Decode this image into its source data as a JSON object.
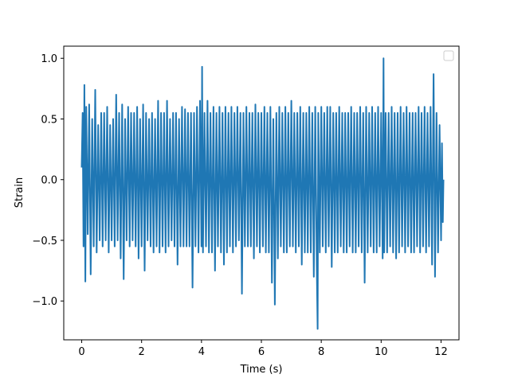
{
  "chart_data": {
    "type": "line",
    "title": "",
    "xlabel": "Time (s)",
    "ylabel": "Strain",
    "xlim": [
      -0.6,
      12.6
    ],
    "ylim": [
      -1.32,
      1.1
    ],
    "xticks": [
      0,
      2,
      4,
      6,
      8,
      10,
      12
    ],
    "yticks": [
      -1.0,
      -0.5,
      0.0,
      0.5,
      1.0
    ],
    "xtick_labels": [
      "0",
      "2",
      "4",
      "6",
      "8",
      "10",
      "12"
    ],
    "ytick_labels": [
      "−1.0",
      "−0.5",
      "0.0",
      "0.5",
      "1.0"
    ],
    "grid": false,
    "legend": {
      "location": "upper right",
      "entries": []
    },
    "series": [
      {
        "color": "#1f77b4",
        "points": [
          [
            0.0,
            0.1
          ],
          [
            0.03,
            0.55
          ],
          [
            0.06,
            -0.55
          ],
          [
            0.09,
            0.78
          ],
          [
            0.12,
            -0.84
          ],
          [
            0.15,
            0.6
          ],
          [
            0.2,
            -0.45
          ],
          [
            0.25,
            0.62
          ],
          [
            0.3,
            -0.78
          ],
          [
            0.35,
            0.5
          ],
          [
            0.4,
            -0.55
          ],
          [
            0.45,
            0.74
          ],
          [
            0.5,
            -0.6
          ],
          [
            0.55,
            0.45
          ],
          [
            0.6,
            -0.5
          ],
          [
            0.65,
            0.55
          ],
          [
            0.7,
            -0.55
          ],
          [
            0.75,
            0.55
          ],
          [
            0.8,
            -0.5
          ],
          [
            0.85,
            0.6
          ],
          [
            0.9,
            -0.6
          ],
          [
            0.95,
            0.45
          ],
          [
            1.0,
            -0.5
          ],
          [
            1.05,
            0.5
          ],
          [
            1.1,
            -0.55
          ],
          [
            1.15,
            0.7
          ],
          [
            1.2,
            -0.5
          ],
          [
            1.25,
            0.55
          ],
          [
            1.3,
            -0.65
          ],
          [
            1.35,
            0.62
          ],
          [
            1.4,
            -0.82
          ],
          [
            1.45,
            0.5
          ],
          [
            1.5,
            -0.5
          ],
          [
            1.55,
            0.6
          ],
          [
            1.6,
            -0.55
          ],
          [
            1.65,
            0.55
          ],
          [
            1.7,
            -0.5
          ],
          [
            1.75,
            0.55
          ],
          [
            1.8,
            -0.55
          ],
          [
            1.85,
            0.6
          ],
          [
            1.9,
            -0.65
          ],
          [
            1.95,
            0.5
          ],
          [
            2.0,
            -0.55
          ],
          [
            2.05,
            0.62
          ],
          [
            2.1,
            -0.75
          ],
          [
            2.15,
            0.55
          ],
          [
            2.2,
            -0.5
          ],
          [
            2.25,
            0.5
          ],
          [
            2.3,
            -0.55
          ],
          [
            2.35,
            0.55
          ],
          [
            2.4,
            -0.6
          ],
          [
            2.45,
            0.5
          ],
          [
            2.5,
            -0.55
          ],
          [
            2.55,
            0.65
          ],
          [
            2.6,
            -0.6
          ],
          [
            2.65,
            0.55
          ],
          [
            2.7,
            -0.55
          ],
          [
            2.75,
            0.55
          ],
          [
            2.8,
            -0.6
          ],
          [
            2.85,
            0.65
          ],
          [
            2.9,
            -0.55
          ],
          [
            2.95,
            0.5
          ],
          [
            3.0,
            -0.5
          ],
          [
            3.05,
            0.55
          ],
          [
            3.1,
            -0.55
          ],
          [
            3.15,
            0.55
          ],
          [
            3.2,
            -0.7
          ],
          [
            3.25,
            0.5
          ],
          [
            3.3,
            -0.55
          ],
          [
            3.35,
            0.6
          ],
          [
            3.4,
            -0.55
          ],
          [
            3.45,
            0.58
          ],
          [
            3.5,
            -0.55
          ],
          [
            3.55,
            0.55
          ],
          [
            3.6,
            -0.55
          ],
          [
            3.65,
            0.55
          ],
          [
            3.7,
            -0.89
          ],
          [
            3.75,
            0.55
          ],
          [
            3.8,
            -0.55
          ],
          [
            3.85,
            0.6
          ],
          [
            3.9,
            -0.6
          ],
          [
            3.95,
            0.65
          ],
          [
            4.0,
            -0.55
          ],
          [
            4.02,
            0.93
          ],
          [
            4.05,
            -0.6
          ],
          [
            4.1,
            0.55
          ],
          [
            4.15,
            -0.55
          ],
          [
            4.2,
            0.65
          ],
          [
            4.25,
            -0.6
          ],
          [
            4.3,
            0.55
          ],
          [
            4.35,
            -0.6
          ],
          [
            4.4,
            0.6
          ],
          [
            4.45,
            -0.75
          ],
          [
            4.5,
            0.55
          ],
          [
            4.55,
            -0.55
          ],
          [
            4.6,
            0.6
          ],
          [
            4.65,
            -0.6
          ],
          [
            4.7,
            0.55
          ],
          [
            4.75,
            -0.7
          ],
          [
            4.8,
            0.6
          ],
          [
            4.85,
            -0.6
          ],
          [
            4.9,
            0.55
          ],
          [
            4.95,
            -0.55
          ],
          [
            5.0,
            0.6
          ],
          [
            5.05,
            -0.6
          ],
          [
            5.1,
            0.55
          ],
          [
            5.15,
            -0.55
          ],
          [
            5.2,
            0.6
          ],
          [
            5.25,
            -0.5
          ],
          [
            5.3,
            0.55
          ],
          [
            5.35,
            -0.94
          ],
          [
            5.4,
            0.55
          ],
          [
            5.45,
            -0.55
          ],
          [
            5.5,
            0.6
          ],
          [
            5.55,
            -0.55
          ],
          [
            5.6,
            0.55
          ],
          [
            5.65,
            -0.55
          ],
          [
            5.7,
            0.55
          ],
          [
            5.75,
            -0.65
          ],
          [
            5.8,
            0.62
          ],
          [
            5.85,
            -0.55
          ],
          [
            5.9,
            0.55
          ],
          [
            5.95,
            -0.6
          ],
          [
            6.0,
            0.55
          ],
          [
            6.05,
            -0.55
          ],
          [
            6.1,
            0.6
          ],
          [
            6.15,
            -0.6
          ],
          [
            6.2,
            0.55
          ],
          [
            6.25,
            -0.6
          ],
          [
            6.3,
            0.6
          ],
          [
            6.35,
            -0.85
          ],
          [
            6.4,
            0.5
          ],
          [
            6.45,
            -1.03
          ],
          [
            6.5,
            0.55
          ],
          [
            6.55,
            -0.65
          ],
          [
            6.6,
            0.6
          ],
          [
            6.65,
            -0.55
          ],
          [
            6.7,
            0.55
          ],
          [
            6.75,
            -0.6
          ],
          [
            6.8,
            0.6
          ],
          [
            6.85,
            -0.6
          ],
          [
            6.9,
            0.55
          ],
          [
            6.95,
            -0.55
          ],
          [
            7.0,
            0.65
          ],
          [
            7.05,
            -0.55
          ],
          [
            7.1,
            0.55
          ],
          [
            7.15,
            -0.6
          ],
          [
            7.2,
            0.55
          ],
          [
            7.25,
            -0.55
          ],
          [
            7.3,
            0.6
          ],
          [
            7.35,
            -0.7
          ],
          [
            7.4,
            0.55
          ],
          [
            7.45,
            -0.6
          ],
          [
            7.5,
            0.55
          ],
          [
            7.55,
            -0.6
          ],
          [
            7.6,
            0.6
          ],
          [
            7.65,
            -0.6
          ],
          [
            7.7,
            0.55
          ],
          [
            7.75,
            -0.8
          ],
          [
            7.8,
            0.6
          ],
          [
            7.85,
            -0.7
          ],
          [
            7.88,
            -1.23
          ],
          [
            7.9,
            0.55
          ],
          [
            7.95,
            -0.6
          ],
          [
            8.0,
            0.6
          ],
          [
            8.05,
            -0.55
          ],
          [
            8.1,
            0.55
          ],
          [
            8.15,
            -0.6
          ],
          [
            8.2,
            0.6
          ],
          [
            8.25,
            -0.55
          ],
          [
            8.3,
            0.6
          ],
          [
            8.35,
            -0.72
          ],
          [
            8.4,
            0.55
          ],
          [
            8.45,
            -0.6
          ],
          [
            8.5,
            0.55
          ],
          [
            8.55,
            -0.6
          ],
          [
            8.6,
            0.6
          ],
          [
            8.65,
            -0.55
          ],
          [
            8.7,
            0.55
          ],
          [
            8.75,
            -0.6
          ],
          [
            8.8,
            0.55
          ],
          [
            8.85,
            -0.6
          ],
          [
            8.9,
            0.55
          ],
          [
            8.95,
            -0.55
          ],
          [
            9.0,
            0.6
          ],
          [
            9.05,
            -0.6
          ],
          [
            9.1,
            0.55
          ],
          [
            9.15,
            -0.6
          ],
          [
            9.2,
            0.55
          ],
          [
            9.25,
            -0.55
          ],
          [
            9.3,
            0.6
          ],
          [
            9.35,
            -0.6
          ],
          [
            9.4,
            0.55
          ],
          [
            9.45,
            -0.85
          ],
          [
            9.5,
            0.6
          ],
          [
            9.55,
            -0.6
          ],
          [
            9.6,
            0.55
          ],
          [
            9.65,
            -0.55
          ],
          [
            9.7,
            0.6
          ],
          [
            9.75,
            -0.6
          ],
          [
            9.8,
            0.55
          ],
          [
            9.85,
            -0.6
          ],
          [
            9.9,
            0.6
          ],
          [
            9.95,
            -0.55
          ],
          [
            10.0,
            0.55
          ],
          [
            10.05,
            -0.65
          ],
          [
            10.08,
            1.0
          ],
          [
            10.1,
            -0.6
          ],
          [
            10.15,
            0.55
          ],
          [
            10.2,
            -0.6
          ],
          [
            10.25,
            0.55
          ],
          [
            10.3,
            -0.55
          ],
          [
            10.35,
            0.6
          ],
          [
            10.4,
            -0.6
          ],
          [
            10.45,
            0.55
          ],
          [
            10.5,
            -0.65
          ],
          [
            10.55,
            0.55
          ],
          [
            10.6,
            -0.6
          ],
          [
            10.65,
            0.6
          ],
          [
            10.7,
            -0.55
          ],
          [
            10.75,
            0.55
          ],
          [
            10.8,
            -0.6
          ],
          [
            10.85,
            0.6
          ],
          [
            10.9,
            -0.55
          ],
          [
            10.95,
            0.55
          ],
          [
            11.0,
            -0.6
          ],
          [
            11.05,
            0.55
          ],
          [
            11.1,
            -0.6
          ],
          [
            11.15,
            0.55
          ],
          [
            11.2,
            -0.55
          ],
          [
            11.25,
            0.6
          ],
          [
            11.3,
            -0.6
          ],
          [
            11.35,
            0.55
          ],
          [
            11.4,
            -0.55
          ],
          [
            11.45,
            0.6
          ],
          [
            11.5,
            -0.6
          ],
          [
            11.55,
            0.55
          ],
          [
            11.6,
            -0.55
          ],
          [
            11.65,
            0.6
          ],
          [
            11.7,
            -0.7
          ],
          [
            11.75,
            0.87
          ],
          [
            11.8,
            -0.8
          ],
          [
            11.85,
            0.55
          ],
          [
            11.9,
            -0.6
          ],
          [
            11.95,
            0.45
          ],
          [
            12.0,
            -0.5
          ],
          [
            12.03,
            0.3
          ],
          [
            12.06,
            -0.35
          ],
          [
            12.08,
            0.0
          ]
        ]
      }
    ]
  }
}
